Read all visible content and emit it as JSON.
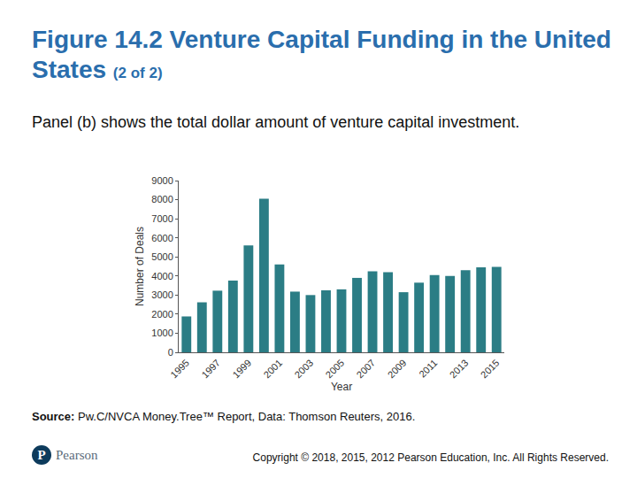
{
  "heading": "Figure 14.2 Venture Capital Funding in the United States",
  "heading_note": "(2 of 2)",
  "caption": "Panel (b) shows the total dollar amount of venture capital investment.",
  "source_label": "Source:",
  "source_text": "Pw.C/NVCA Money.Tree™ Report, Data: Thomson Reuters, 2016.",
  "logo_mark": "P",
  "logo_text": "Pearson",
  "copyright": "Copyright © 2018, 2015, 2012 Pearson Education, Inc. All Rights Reserved.",
  "chart_data": {
    "type": "bar",
    "x_label": "Year",
    "y_label": "Number of Deals",
    "categories": [
      "1995",
      null,
      "1997",
      null,
      "1999",
      null,
      "2001",
      null,
      "2003",
      null,
      "2005",
      null,
      "2007",
      null,
      "2009",
      null,
      "2011",
      null,
      "2013",
      null,
      "2015"
    ],
    "values": [
      1880,
      2620,
      3230,
      3760,
      5600,
      8050,
      4600,
      3180,
      3000,
      3250,
      3300,
      3900,
      4250,
      4200,
      3150,
      3650,
      4050,
      4000,
      4300,
      4450,
      4480
    ],
    "color": "#2b7d85",
    "ylim": [
      0,
      9000
    ],
    "yticks": [
      0,
      1000,
      2000,
      3000,
      4000,
      5000,
      6000,
      7000,
      8000,
      9000
    ],
    "grid": false
  }
}
